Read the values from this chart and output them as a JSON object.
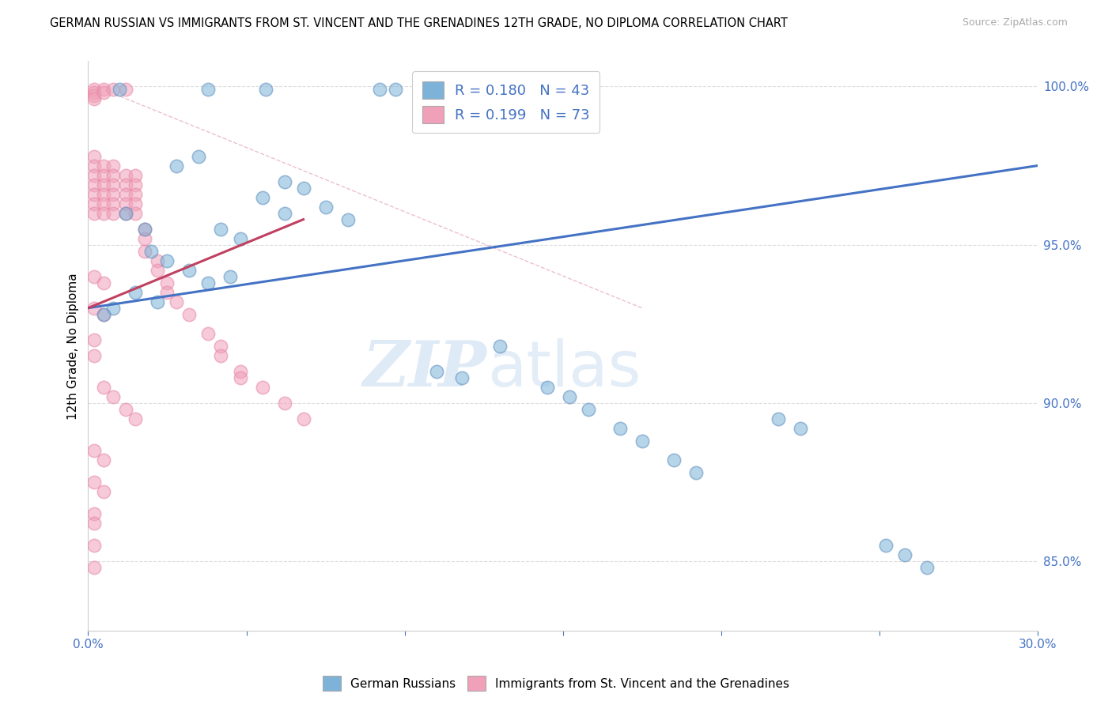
{
  "title": "GERMAN RUSSIAN VS IMMIGRANTS FROM ST. VINCENT AND THE GRENADINES 12TH GRADE, NO DIPLOMA CORRELATION CHART",
  "source": "Source: ZipAtlas.com",
  "ylabel": "12th Grade, No Diploma",
  "xmin": 0.0,
  "xmax": 0.3,
  "ymin": 0.828,
  "ymax": 1.008,
  "yticks": [
    0.85,
    0.9,
    0.95,
    1.0
  ],
  "ytick_labels": [
    "85.0%",
    "90.0%",
    "95.0%",
    "100.0%"
  ],
  "xticks": [
    0.0,
    0.05,
    0.1,
    0.15,
    0.2,
    0.25,
    0.3
  ],
  "xtick_labels": [
    "0.0%",
    "",
    "",
    "",
    "",
    "",
    "30.0%"
  ],
  "blue_scatter_x": [
    0.038,
    0.01,
    0.092,
    0.097,
    0.105,
    0.112,
    0.118,
    0.056,
    0.028,
    0.035,
    0.062,
    0.068,
    0.075,
    0.082,
    0.042,
    0.048,
    0.02,
    0.025,
    0.012,
    0.018,
    0.032,
    0.038,
    0.015,
    0.022,
    0.008,
    0.005,
    0.055,
    0.062,
    0.045,
    0.11,
    0.118,
    0.13,
    0.145,
    0.152,
    0.158,
    0.168,
    0.175,
    0.185,
    0.192,
    0.218,
    0.225,
    0.252,
    0.258,
    0.265
  ],
  "blue_scatter_y": [
    0.999,
    0.999,
    0.999,
    0.999,
    0.999,
    0.999,
    0.999,
    0.999,
    0.975,
    0.978,
    0.97,
    0.968,
    0.962,
    0.958,
    0.955,
    0.952,
    0.948,
    0.945,
    0.96,
    0.955,
    0.942,
    0.938,
    0.935,
    0.932,
    0.93,
    0.928,
    0.965,
    0.96,
    0.94,
    0.91,
    0.908,
    0.918,
    0.905,
    0.902,
    0.898,
    0.892,
    0.888,
    0.882,
    0.878,
    0.895,
    0.892,
    0.855,
    0.852,
    0.848
  ],
  "pink_scatter_x": [
    0.002,
    0.002,
    0.002,
    0.002,
    0.002,
    0.002,
    0.002,
    0.002,
    0.002,
    0.002,
    0.002,
    0.005,
    0.005,
    0.005,
    0.005,
    0.005,
    0.005,
    0.005,
    0.005,
    0.008,
    0.008,
    0.008,
    0.008,
    0.008,
    0.008,
    0.008,
    0.012,
    0.012,
    0.012,
    0.012,
    0.012,
    0.012,
    0.015,
    0.015,
    0.015,
    0.015,
    0.015,
    0.018,
    0.018,
    0.018,
    0.022,
    0.022,
    0.025,
    0.025,
    0.028,
    0.032,
    0.038,
    0.042,
    0.042,
    0.048,
    0.048,
    0.055,
    0.062,
    0.068,
    0.002,
    0.005,
    0.002,
    0.005,
    0.002,
    0.002,
    0.005,
    0.008,
    0.012,
    0.015,
    0.002,
    0.005,
    0.002,
    0.005,
    0.002,
    0.002,
    0.002,
    0.002
  ],
  "pink_scatter_y": [
    0.999,
    0.998,
    0.997,
    0.996,
    0.978,
    0.975,
    0.972,
    0.969,
    0.966,
    0.963,
    0.96,
    0.999,
    0.998,
    0.975,
    0.972,
    0.969,
    0.966,
    0.963,
    0.96,
    0.999,
    0.975,
    0.972,
    0.969,
    0.966,
    0.963,
    0.96,
    0.999,
    0.972,
    0.969,
    0.966,
    0.963,
    0.96,
    0.972,
    0.969,
    0.966,
    0.963,
    0.96,
    0.955,
    0.952,
    0.948,
    0.945,
    0.942,
    0.938,
    0.935,
    0.932,
    0.928,
    0.922,
    0.918,
    0.915,
    0.91,
    0.908,
    0.905,
    0.9,
    0.895,
    0.94,
    0.938,
    0.93,
    0.928,
    0.92,
    0.915,
    0.905,
    0.902,
    0.898,
    0.895,
    0.885,
    0.882,
    0.875,
    0.872,
    0.865,
    0.862,
    0.855,
    0.848
  ],
  "blue_line_x": [
    0.0,
    0.3
  ],
  "blue_line_y": [
    0.93,
    0.975
  ],
  "pink_line_x": [
    0.0,
    0.068
  ],
  "pink_line_y": [
    0.93,
    0.958
  ],
  "diagonal_line_x": [
    0.005,
    0.175
  ],
  "diagonal_line_y": [
    0.999,
    0.93
  ],
  "watermark_zip": "ZIP",
  "watermark_atlas": "atlas",
  "background_color": "#ffffff",
  "blue_color": "#7db3d8",
  "pink_color": "#f0a0b8",
  "blue_line_color": "#4472c4",
  "pink_line_color": "#c04060",
  "grid_color": "#dddddd",
  "title_fontsize": 10.5,
  "axis_label_color": "#4472c4",
  "source_color": "#aaaaaa"
}
